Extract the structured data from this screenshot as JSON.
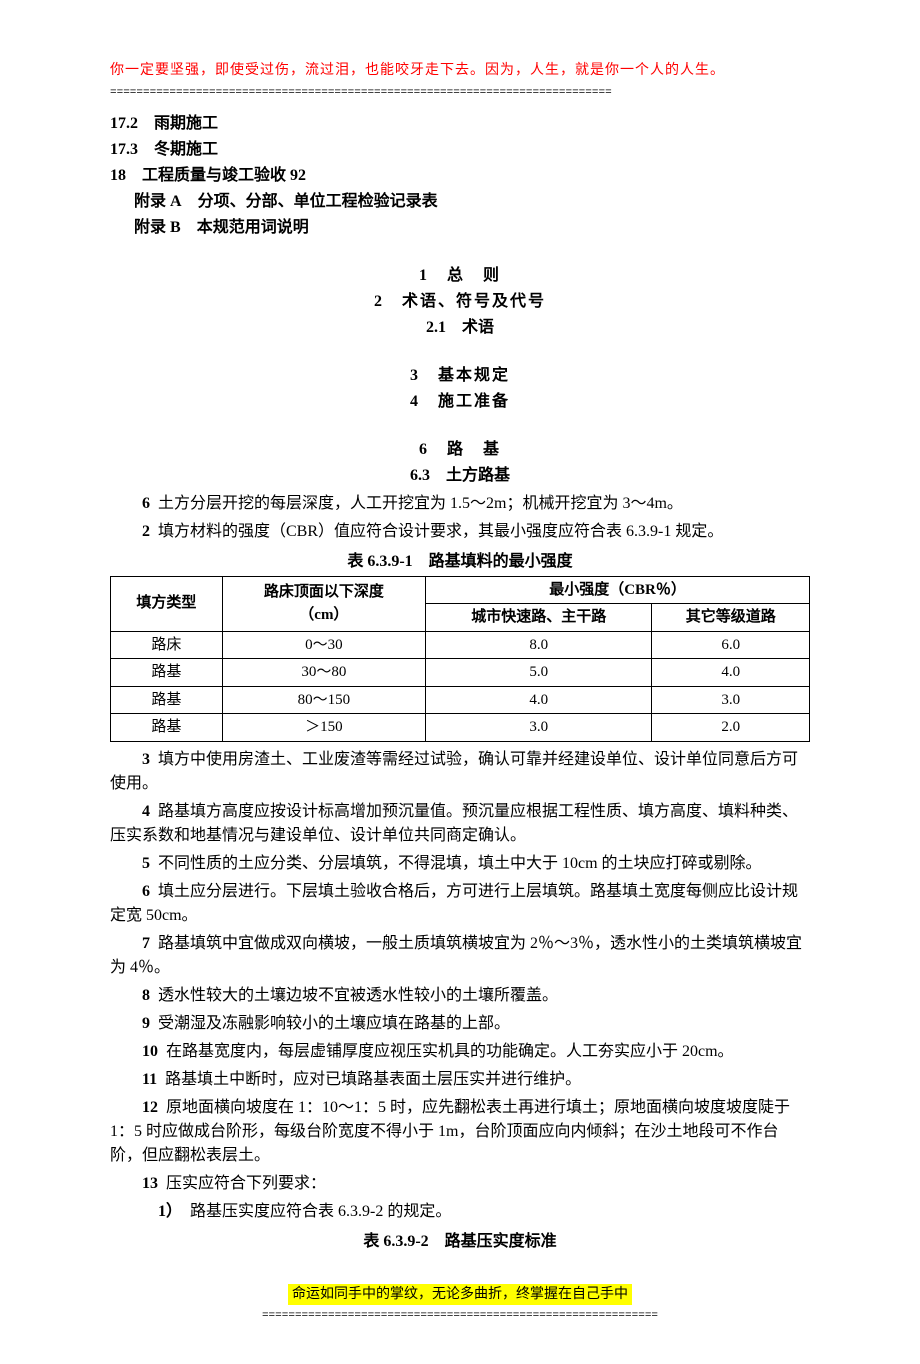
{
  "header": {
    "quote": "你一定要坚强，即使受过伤，流过泪，也能咬牙走下去。因为，人生，就是你一个人的人生。",
    "divider": "============================================================================",
    "quote_color": "#ff0000"
  },
  "toc": [
    {
      "num": "17.2",
      "label": "雨期施工",
      "indent": false
    },
    {
      "num": "17.3",
      "label": "冬期施工",
      "indent": false
    },
    {
      "num": "18",
      "label": "工程质量与竣工验收  92",
      "indent": false
    },
    {
      "num": "附录 A",
      "label": "分项、分部、单位工程检验记录表",
      "indent": true
    },
    {
      "num": "附录 B",
      "label": "本规范用词说明",
      "indent": true
    }
  ],
  "sections": {
    "block1": [
      "1　总　则",
      "2　术语、符号及代号",
      "2.1　术语"
    ],
    "block2": [
      "3　基本规定",
      "4　施工准备"
    ],
    "block3": [
      "6　路　基",
      "6.3　土方路基"
    ]
  },
  "clauses_a": [
    {
      "n": "6",
      "text": "土方分层开挖的每层深度，人工开挖宜为 1.5～2m；机械开挖宜为 3～4m。"
    },
    {
      "n": "2",
      "text": "填方材料的强度（CBR）值应符合设计要求，其最小强度应符合表 6.3.9-1 规定。"
    }
  ],
  "table1": {
    "title": "表 6.3.9-1　路基填料的最小强度",
    "header_row1_col1": "填方类型",
    "header_row1_col2": "路床顶面以下深度（cm）",
    "header_row1_col2_line1": "路床顶面以下深度",
    "header_row1_col2_line2": "（cm）",
    "header_row1_col3": "最小强度（CBR％）",
    "header_row2_col1": "城市快速路、主干路",
    "header_row2_col2": "其它等级道路",
    "rows": [
      {
        "c1": "路床",
        "c2": "0～30",
        "c3": "8.0",
        "c4": "6.0"
      },
      {
        "c1": "路基",
        "c2": "30～80",
        "c3": "5.0",
        "c4": "4.0"
      },
      {
        "c1": "路基",
        "c2": "80～150",
        "c3": "4.0",
        "c4": "3.0"
      },
      {
        "c1": "路基",
        "c2": "＞150",
        "c3": "3.0",
        "c4": "2.0"
      }
    ]
  },
  "clauses_b": [
    {
      "n": "3",
      "text": "填方中使用房渣土、工业废渣等需经过试验，确认可靠并经建设单位、设计单位同意后方可使用。"
    },
    {
      "n": "4",
      "text": "路基填方高度应按设计标高增加预沉量值。预沉量应根据工程性质、填方高度、填料种类、压实系数和地基情况与建设单位、设计单位共同商定确认。"
    },
    {
      "n": "5",
      "text": "不同性质的土应分类、分层填筑，不得混填，填土中大于 10cm 的土块应打碎或剔除。"
    },
    {
      "n": "6",
      "text": "填土应分层进行。下层填土验收合格后，方可进行上层填筑。路基填土宽度每侧应比设计规定宽 50cm。"
    },
    {
      "n": "7",
      "text": "路基填筑中宜做成双向横坡，一般土质填筑横坡宜为 2％～3％，透水性小的土类填筑横坡宜为 4％。"
    },
    {
      "n": "8",
      "text": "透水性较大的土壤边坡不宜被透水性较小的土壤所覆盖。"
    },
    {
      "n": "9",
      "text": "受潮湿及冻融影响较小的土壤应填在路基的上部。"
    },
    {
      "n": "10",
      "text": "在路基宽度内，每层虚铺厚度应视压实机具的功能确定。人工夯实应小于 20cm。"
    },
    {
      "n": "11",
      "text": "路基填土中断时，应对已填路基表面土层压实并进行维护。"
    },
    {
      "n": "12",
      "text": "原地面横向坡度在 1：10～1：5 时，应先翻松表土再进行填土；原地面横向坡度坡度陡于 1：5 时应做成台阶形，每级台阶宽度不得小于 1m，台阶顶面应向内倾斜；在沙土地段可不作台阶，但应翻松表层土。"
    },
    {
      "n": "13",
      "text": "压实应符合下列要求："
    }
  ],
  "subclause_13_1": {
    "n": "1）",
    "text": "路基压实度应符合表 6.3.9-2 的规定。"
  },
  "table2_title": "表 6.3.9-2　路基压实度标准",
  "footer": {
    "quote": "命运如同手中的掌纹，无论多曲折，终掌握在自己手中",
    "divider": "============================================================",
    "highlight_color": "#ffff00"
  }
}
